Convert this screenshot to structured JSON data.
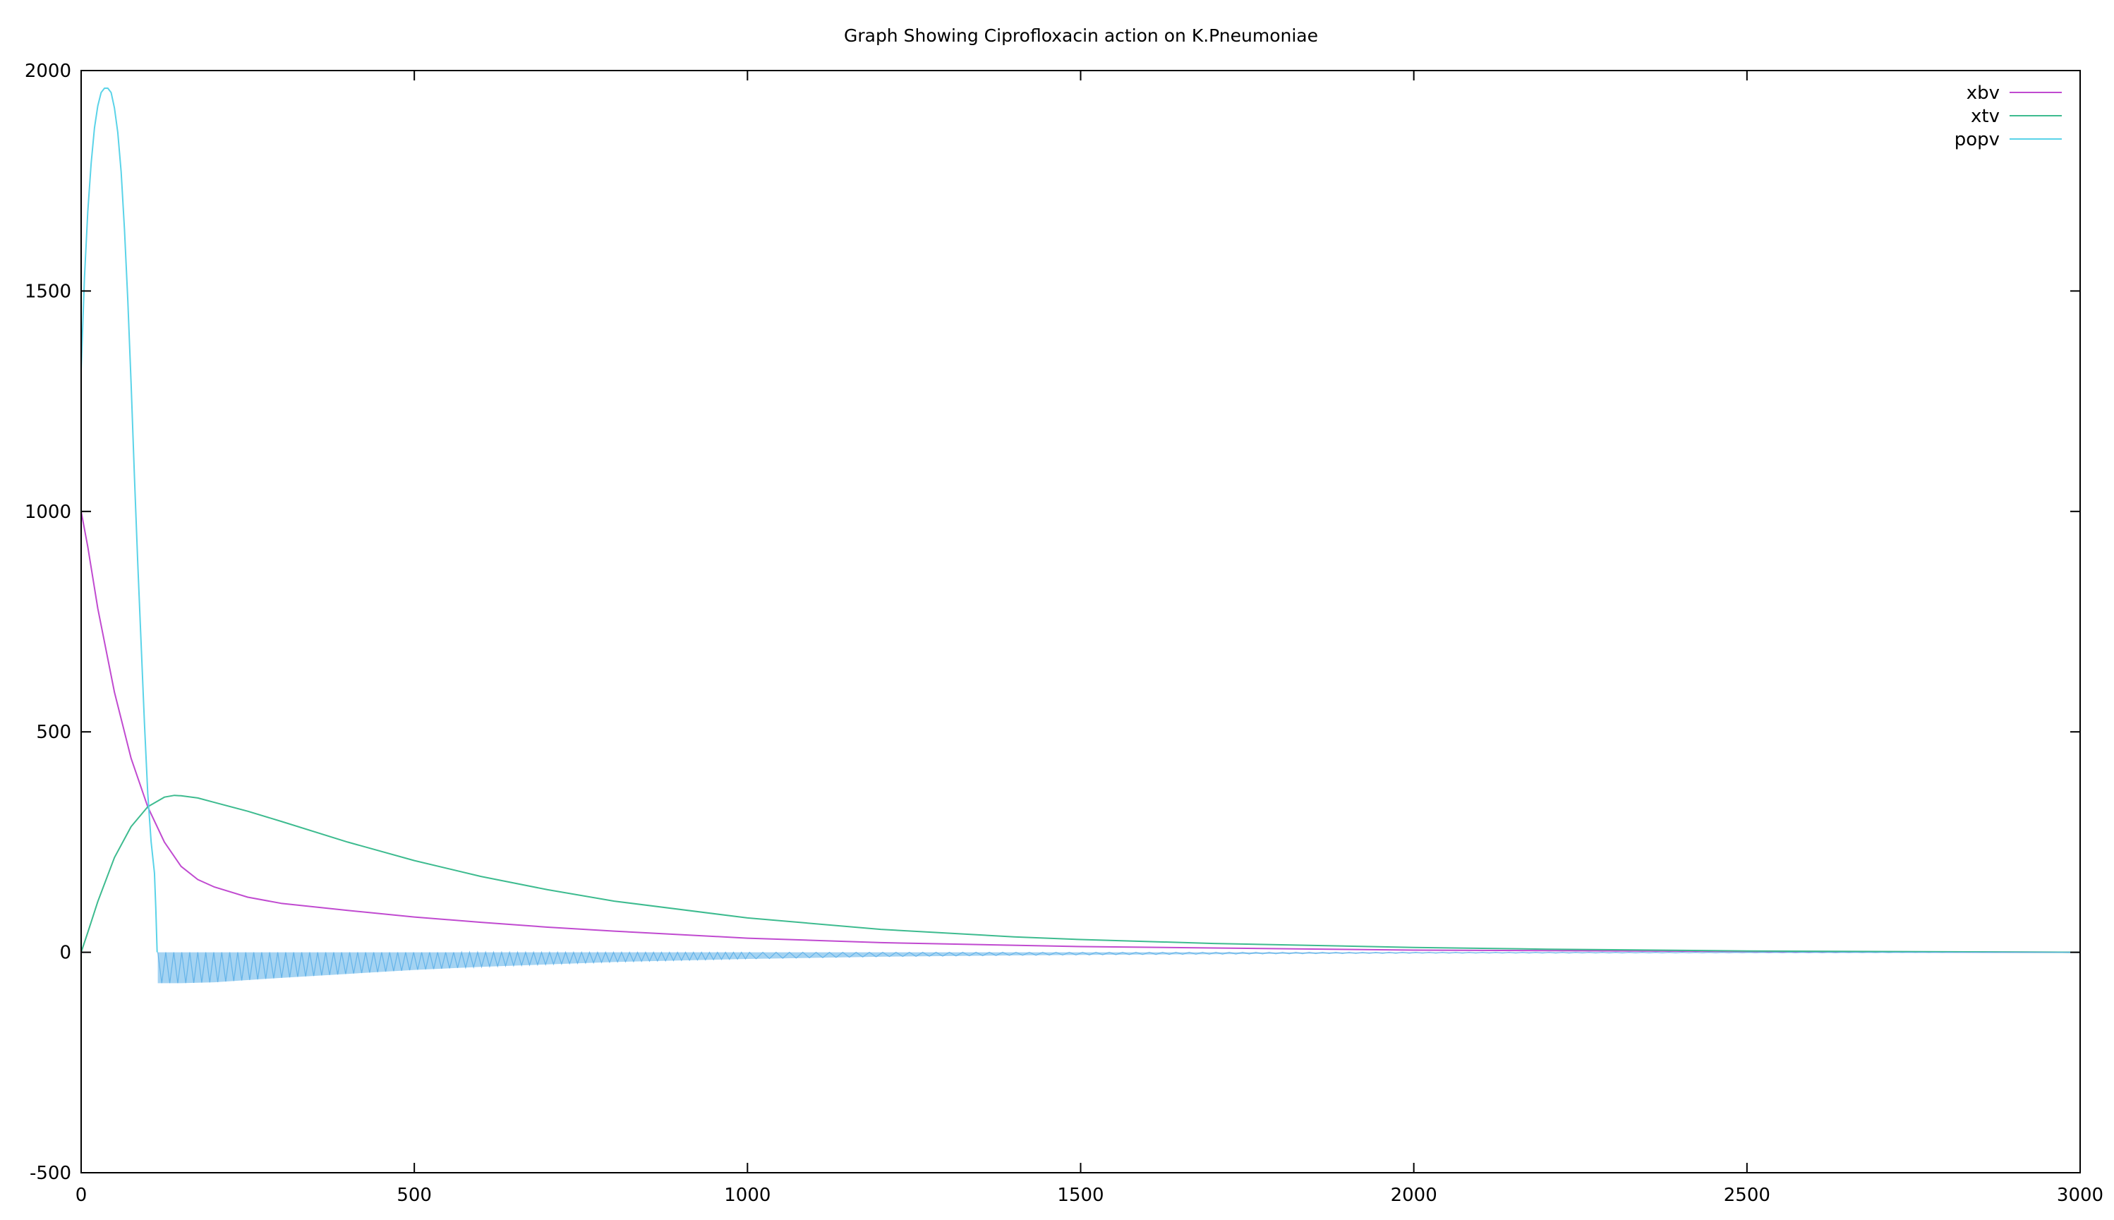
{
  "chart_data": {
    "type": "line",
    "title": "Graph Showing Ciprofloxacin action on K.Pneumoniae",
    "xlabel": "",
    "ylabel": "",
    "xlim": [
      0,
      3000
    ],
    "ylim": [
      -500,
      2000
    ],
    "xticks": [
      0,
      500,
      1000,
      1500,
      2000,
      2500,
      3000
    ],
    "yticks": [
      -500,
      0,
      500,
      1000,
      1500,
      2000
    ],
    "xtick_labels": [
      "0",
      "500",
      "1000",
      "1500",
      "2000",
      "2500",
      "3000"
    ],
    "ytick_labels": [
      "-500",
      "0",
      "500",
      "1000",
      "1500",
      "2000"
    ],
    "grid": false,
    "legend_position": "top-right",
    "series": [
      {
        "name": "xbv",
        "color": "#c04ad0",
        "style": "line",
        "x": [
          0,
          10,
          25,
          50,
          75,
          100,
          125,
          150,
          175,
          200,
          250,
          300,
          400,
          500,
          600,
          700,
          800,
          1000,
          1200,
          1500,
          2000,
          2500,
          3000
        ],
        "y": [
          1000,
          920,
          780,
          590,
          440,
          330,
          250,
          195,
          165,
          148,
          125,
          111,
          95,
          80,
          68,
          57,
          48,
          32,
          22,
          13,
          5,
          2,
          0
        ]
      },
      {
        "name": "xtv",
        "color": "#3dbb8f",
        "style": "line",
        "x": [
          0,
          10,
          25,
          50,
          75,
          100,
          125,
          140,
          150,
          175,
          200,
          250,
          300,
          400,
          500,
          600,
          700,
          800,
          1000,
          1200,
          1400,
          1500,
          1700,
          2000,
          2200,
          2500,
          3000
        ],
        "y": [
          0,
          45,
          115,
          215,
          285,
          330,
          352,
          356,
          355,
          350,
          340,
          320,
          297,
          250,
          208,
          172,
          142,
          116,
          78,
          52,
          35,
          29,
          20,
          11,
          7,
          3,
          0
        ]
      },
      {
        "name": "popv",
        "color": "#5ad3e8",
        "style": "line",
        "x": [
          0,
          5,
          10,
          15,
          20,
          25,
          30,
          35,
          40,
          45,
          50,
          55,
          60,
          65,
          70,
          75,
          80,
          85,
          90,
          95,
          100,
          105,
          110,
          112,
          114
        ],
        "y": [
          1320,
          1530,
          1680,
          1790,
          1870,
          1920,
          1950,
          1960,
          1960,
          1950,
          1915,
          1860,
          1770,
          1640,
          1480,
          1290,
          1080,
          880,
          700,
          520,
          360,
          250,
          180,
          100,
          0
        ]
      },
      {
        "name": "popv-oscillation-band",
        "color": "#5aaee8",
        "style": "band",
        "x": [
          115,
          150,
          200,
          300,
          400,
          500,
          600,
          800,
          1000,
          1200,
          1400,
          1600,
          2000,
          2500,
          3000
        ],
        "lower": [
          -70,
          -70,
          -68,
          -58,
          -49,
          -40,
          -33,
          -22,
          -15,
          -10,
          -7,
          -5,
          -2,
          -1,
          0
        ],
        "upper": [
          0,
          0,
          0,
          0,
          0,
          0,
          0,
          0,
          0,
          0,
          0,
          0,
          0,
          0,
          0
        ]
      }
    ]
  }
}
